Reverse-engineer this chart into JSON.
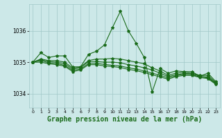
{
  "background_color": "#cce8e8",
  "grid_color": "#a0c8c8",
  "line_color": "#1a6b1a",
  "xlabel": "Graphe pression niveau de la mer (hPa)",
  "xlabel_fontsize": 7,
  "yticks": [
    1034,
    1035,
    1036
  ],
  "xticks": [
    0,
    1,
    2,
    3,
    4,
    5,
    6,
    7,
    8,
    9,
    10,
    11,
    12,
    13,
    14,
    15,
    16,
    17,
    18,
    19,
    20,
    21,
    22,
    23
  ],
  "ylim": [
    1033.55,
    1036.85
  ],
  "xlim": [
    -0.5,
    23.5
  ],
  "series": [
    [
      1035.0,
      1035.3,
      1035.15,
      1035.2,
      1035.2,
      1034.85,
      1034.85,
      1035.25,
      1035.35,
      1035.55,
      1036.1,
      1036.62,
      1036.0,
      1035.6,
      1035.15,
      1034.05,
      1034.8,
      1034.65,
      1034.72,
      1034.7,
      1034.7,
      1034.55,
      1034.65,
      1034.38
    ],
    [
      1035.0,
      1035.1,
      1035.05,
      1035.05,
      1035.0,
      1034.82,
      1034.85,
      1035.05,
      1035.1,
      1035.1,
      1035.12,
      1035.1,
      1035.05,
      1035.0,
      1034.95,
      1034.82,
      1034.72,
      1034.58,
      1034.65,
      1034.68,
      1034.65,
      1034.58,
      1034.58,
      1034.35
    ],
    [
      1035.0,
      1035.08,
      1035.02,
      1035.0,
      1034.95,
      1034.78,
      1034.82,
      1035.02,
      1035.02,
      1035.0,
      1035.0,
      1034.98,
      1034.92,
      1034.88,
      1034.82,
      1034.75,
      1034.65,
      1034.54,
      1034.6,
      1034.64,
      1034.63,
      1034.55,
      1034.53,
      1034.33
    ],
    [
      1035.0,
      1035.05,
      1034.98,
      1034.96,
      1034.9,
      1034.74,
      1034.78,
      1034.96,
      1034.96,
      1034.93,
      1034.9,
      1034.88,
      1034.82,
      1034.78,
      1034.72,
      1034.65,
      1034.58,
      1034.5,
      1034.57,
      1034.61,
      1034.6,
      1034.53,
      1034.5,
      1034.31
    ],
    [
      1035.0,
      1035.0,
      1034.95,
      1034.92,
      1034.87,
      1034.7,
      1034.75,
      1034.92,
      1034.92,
      1034.88,
      1034.86,
      1034.83,
      1034.77,
      1034.73,
      1034.67,
      1034.6,
      1034.53,
      1034.46,
      1034.54,
      1034.58,
      1034.58,
      1034.51,
      1034.48,
      1034.29
    ]
  ],
  "marker": "*",
  "markersize": 3,
  "linewidth": 0.8
}
